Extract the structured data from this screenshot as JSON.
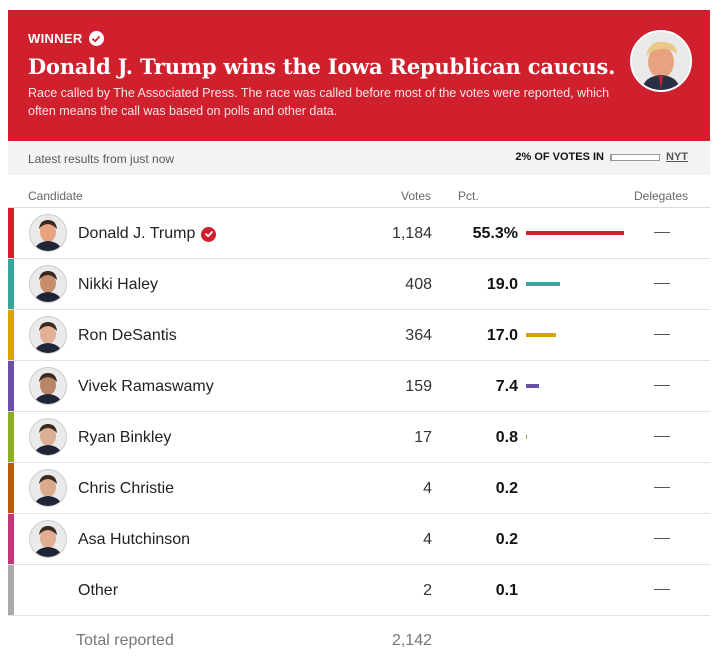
{
  "banner": {
    "winner_label": "WINNER",
    "headline": "Donald J. Trump wins the Iowa Republican caucus.",
    "subhead": "Race called by The Associated Press. The race was called before most of the votes were reported, which often means the call was based on polls and other data.",
    "color": "#d0202e"
  },
  "meta": {
    "latest": "Latest results from just now",
    "votes_in": "2% OF VOTES IN",
    "votes_in_fraction": 0.02,
    "source": "NYT"
  },
  "table": {
    "headers": {
      "candidate": "Candidate",
      "votes": "Votes",
      "pct": "Pct.",
      "delegates": "Delegates"
    },
    "rows": [
      {
        "name": "Donald J. Trump",
        "votes": "1,184",
        "pct": "55.3%",
        "pct_value": 55.3,
        "delegates": "—",
        "color": "#cc2229",
        "winner": true,
        "avatar": "candidate-photo"
      },
      {
        "name": "Nikki Haley",
        "votes": "408",
        "pct": "19.0",
        "pct_value": 19.0,
        "delegates": "—",
        "color": "#3aa59b",
        "winner": false,
        "avatar": "candidate-photo"
      },
      {
        "name": "Ron DeSantis",
        "votes": "364",
        "pct": "17.0",
        "pct_value": 17.0,
        "delegates": "—",
        "color": "#d9a300",
        "winner": false,
        "avatar": "candidate-photo"
      },
      {
        "name": "Vivek Ramaswamy",
        "votes": "159",
        "pct": "7.4",
        "pct_value": 7.4,
        "delegates": "—",
        "color": "#6a4fa8",
        "winner": false,
        "avatar": "candidate-photo"
      },
      {
        "name": "Ryan Binkley",
        "votes": "17",
        "pct": "0.8",
        "pct_value": 0.8,
        "delegates": "—",
        "color": "#8cb024",
        "winner": false,
        "avatar": "candidate-photo"
      },
      {
        "name": "Chris Christie",
        "votes": "4",
        "pct": "0.2",
        "pct_value": 0.2,
        "delegates": "—",
        "color": "#b85c0a",
        "winner": false,
        "avatar": "candidate-photo"
      },
      {
        "name": "Asa Hutchinson",
        "votes": "4",
        "pct": "0.2",
        "pct_value": 0.2,
        "delegates": "—",
        "color": "#c4357a",
        "winner": false,
        "avatar": "candidate-photo"
      },
      {
        "name": "Other",
        "votes": "2",
        "pct": "0.1",
        "pct_value": 0.1,
        "delegates": "—",
        "color": "#aaaaaa",
        "winner": false,
        "avatar": null
      }
    ],
    "total_label": "Total reported",
    "total_votes": "2,142"
  }
}
